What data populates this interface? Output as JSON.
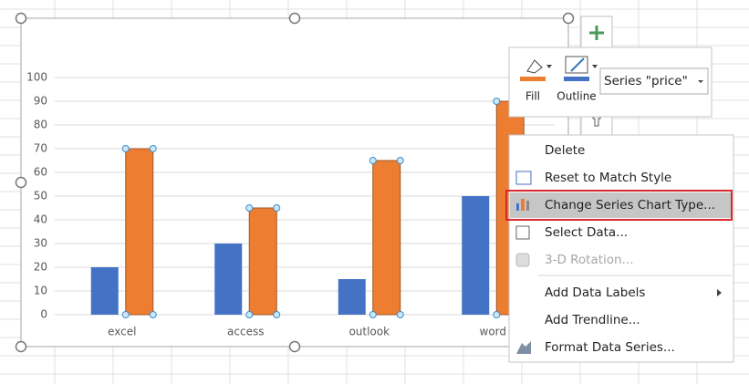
{
  "chart_data": {
    "type": "bar",
    "categories": [
      "excel",
      "access",
      "outlook",
      "word"
    ],
    "series": [
      {
        "color": "#4472c4",
        "values": [
          20,
          30,
          15,
          50
        ]
      },
      {
        "name": "price",
        "color": "#ed7d31",
        "values": [
          70,
          45,
          65,
          90
        ],
        "selected": true
      }
    ],
    "ylim": [
      0,
      100
    ],
    "yticks": [
      0,
      10,
      20,
      30,
      40,
      50,
      60,
      70,
      80,
      90,
      100
    ],
    "grid": true
  },
  "toolbar": {
    "fill": "Fill",
    "outline": "Outline",
    "series_select": "Series \"price\""
  },
  "menu": {
    "items": [
      {
        "label": "Delete"
      },
      {
        "label": "Reset to Match Style"
      },
      {
        "label": "Change Series Chart Type...",
        "highlighted": true
      },
      {
        "label": "Select Data..."
      },
      {
        "label": "3-D Rotation...",
        "disabled": true
      },
      {
        "label": "Add Data Labels",
        "submenu": true,
        "separator_before": true
      },
      {
        "label": "Add Trendline..."
      },
      {
        "label": "Format Data Series..."
      }
    ]
  }
}
